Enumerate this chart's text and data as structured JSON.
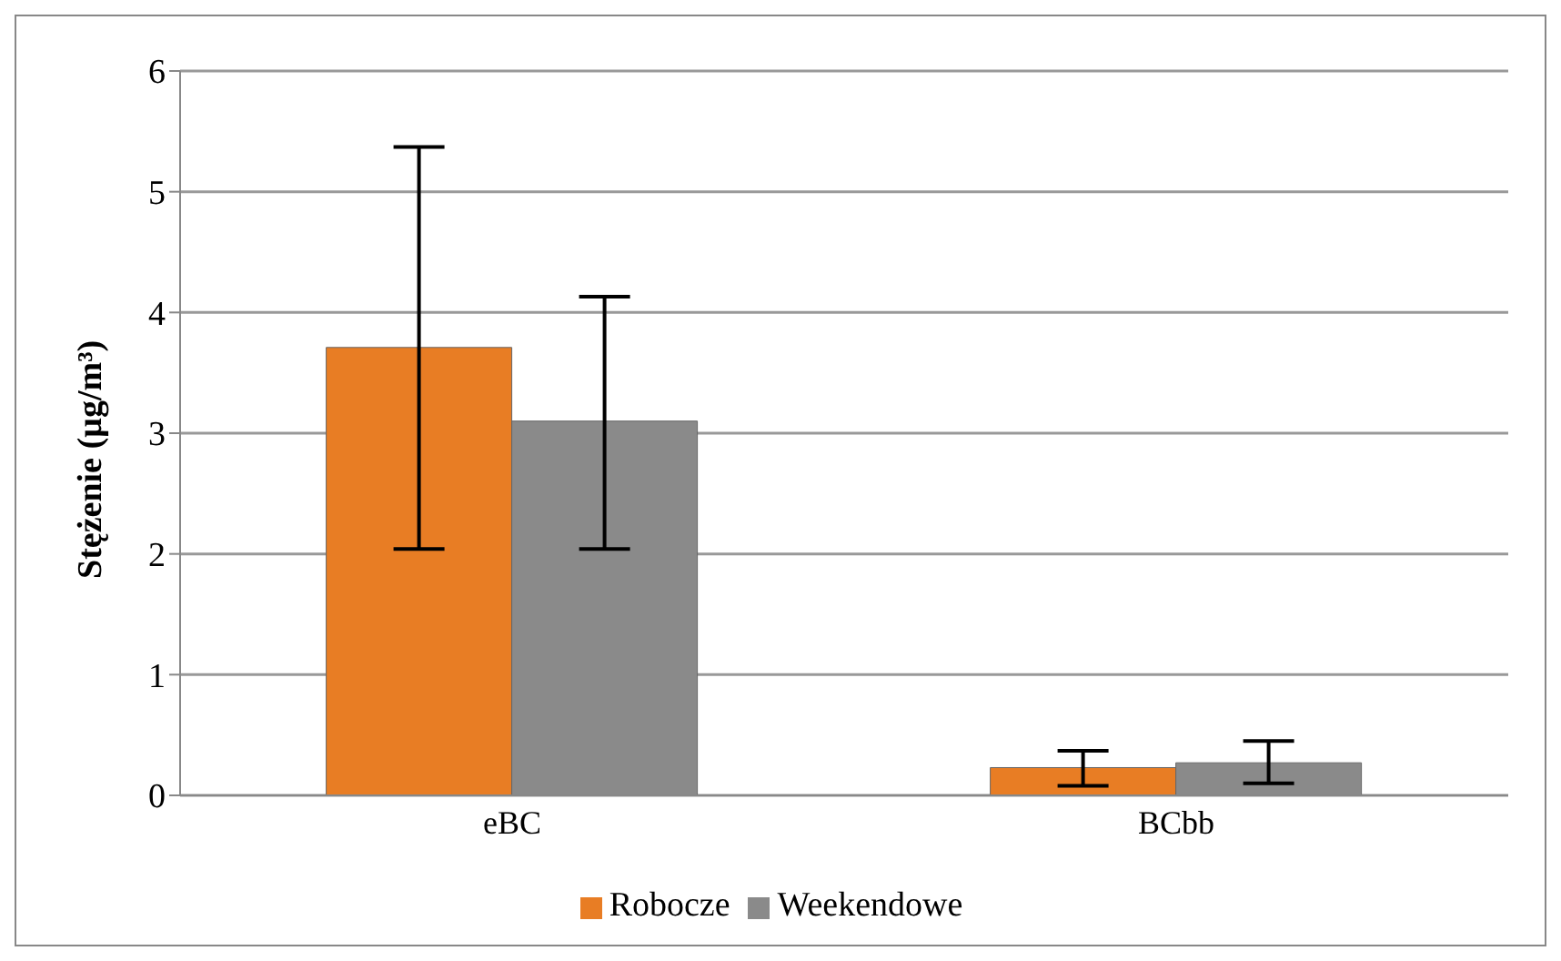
{
  "chart_data": {
    "type": "bar",
    "ylabel": "Stężenie (µg/m³)",
    "categories": [
      "eBC",
      "BCbb"
    ],
    "series": [
      {
        "name": "Robocze",
        "color": "#e87d24",
        "values": [
          3.71,
          0.23
        ],
        "errors": [
          [
            2.04,
            5.37
          ],
          [
            0.08,
            0.37
          ]
        ]
      },
      {
        "name": "Weekendowe",
        "color": "#8a8a8a",
        "values": [
          3.1,
          0.27
        ],
        "errors": [
          [
            2.04,
            4.13
          ],
          [
            0.1,
            0.45
          ]
        ]
      }
    ],
    "ylim": [
      0,
      6
    ],
    "yticks": [
      0,
      1,
      2,
      3,
      4,
      5,
      6
    ],
    "grid": "y",
    "legend": "bottom"
  }
}
